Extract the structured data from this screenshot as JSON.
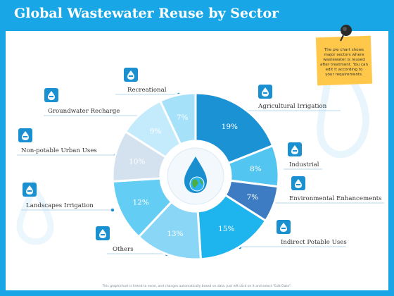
{
  "page": {
    "title": "Global Wastewater Reuse by Sector",
    "footer": "This graph/chart is linked to excel, and changes automatically based on data. Just left click on it and select \"Edit Data\"."
  },
  "note": {
    "text": "The pie chart shows major sectors where wastewater is reused after treatment. You can edit it according to your requirements."
  },
  "colors": {
    "header": "#19a6e6",
    "label_text": "#333333",
    "icon_tile": "#1a90d0",
    "note": "#ffc84a",
    "pin": "#2b2b2b"
  },
  "center_icon": "water-drop-globe-icon",
  "chart_data": {
    "type": "pie",
    "style": "donut",
    "title": "",
    "categories": [
      "Agricultural Irrigation",
      "Industrial",
      "Environmental Enhancements",
      "Indirect Potable Uses",
      "Others",
      "Landscapes Irrigation",
      "Non-potable Urban Uses",
      "Groundwater Recharge",
      "Recreational"
    ],
    "values": [
      19,
      8,
      7,
      15,
      13,
      12,
      10,
      9,
      7
    ],
    "value_labels": [
      "19%",
      "8%",
      "7%",
      "15%",
      "13%",
      "12%",
      "10%",
      "9%",
      "7%"
    ],
    "slice_colors": [
      "#1a92d4",
      "#52c5f0",
      "#3d7cc2",
      "#1eb4ee",
      "#8ad6f6",
      "#64cdf4",
      "#d4e1ef",
      "#c4ebfb",
      "#a6e1fa"
    ],
    "icons": [
      "clipboard-icon",
      "factory-icon",
      "globe-icon",
      "faucet-icon",
      "hand-drop-icon",
      "plant-icon",
      "gauge-icon",
      "water-tank-icon",
      "water-drops-icon"
    ],
    "legend": "callout labels around chart"
  }
}
